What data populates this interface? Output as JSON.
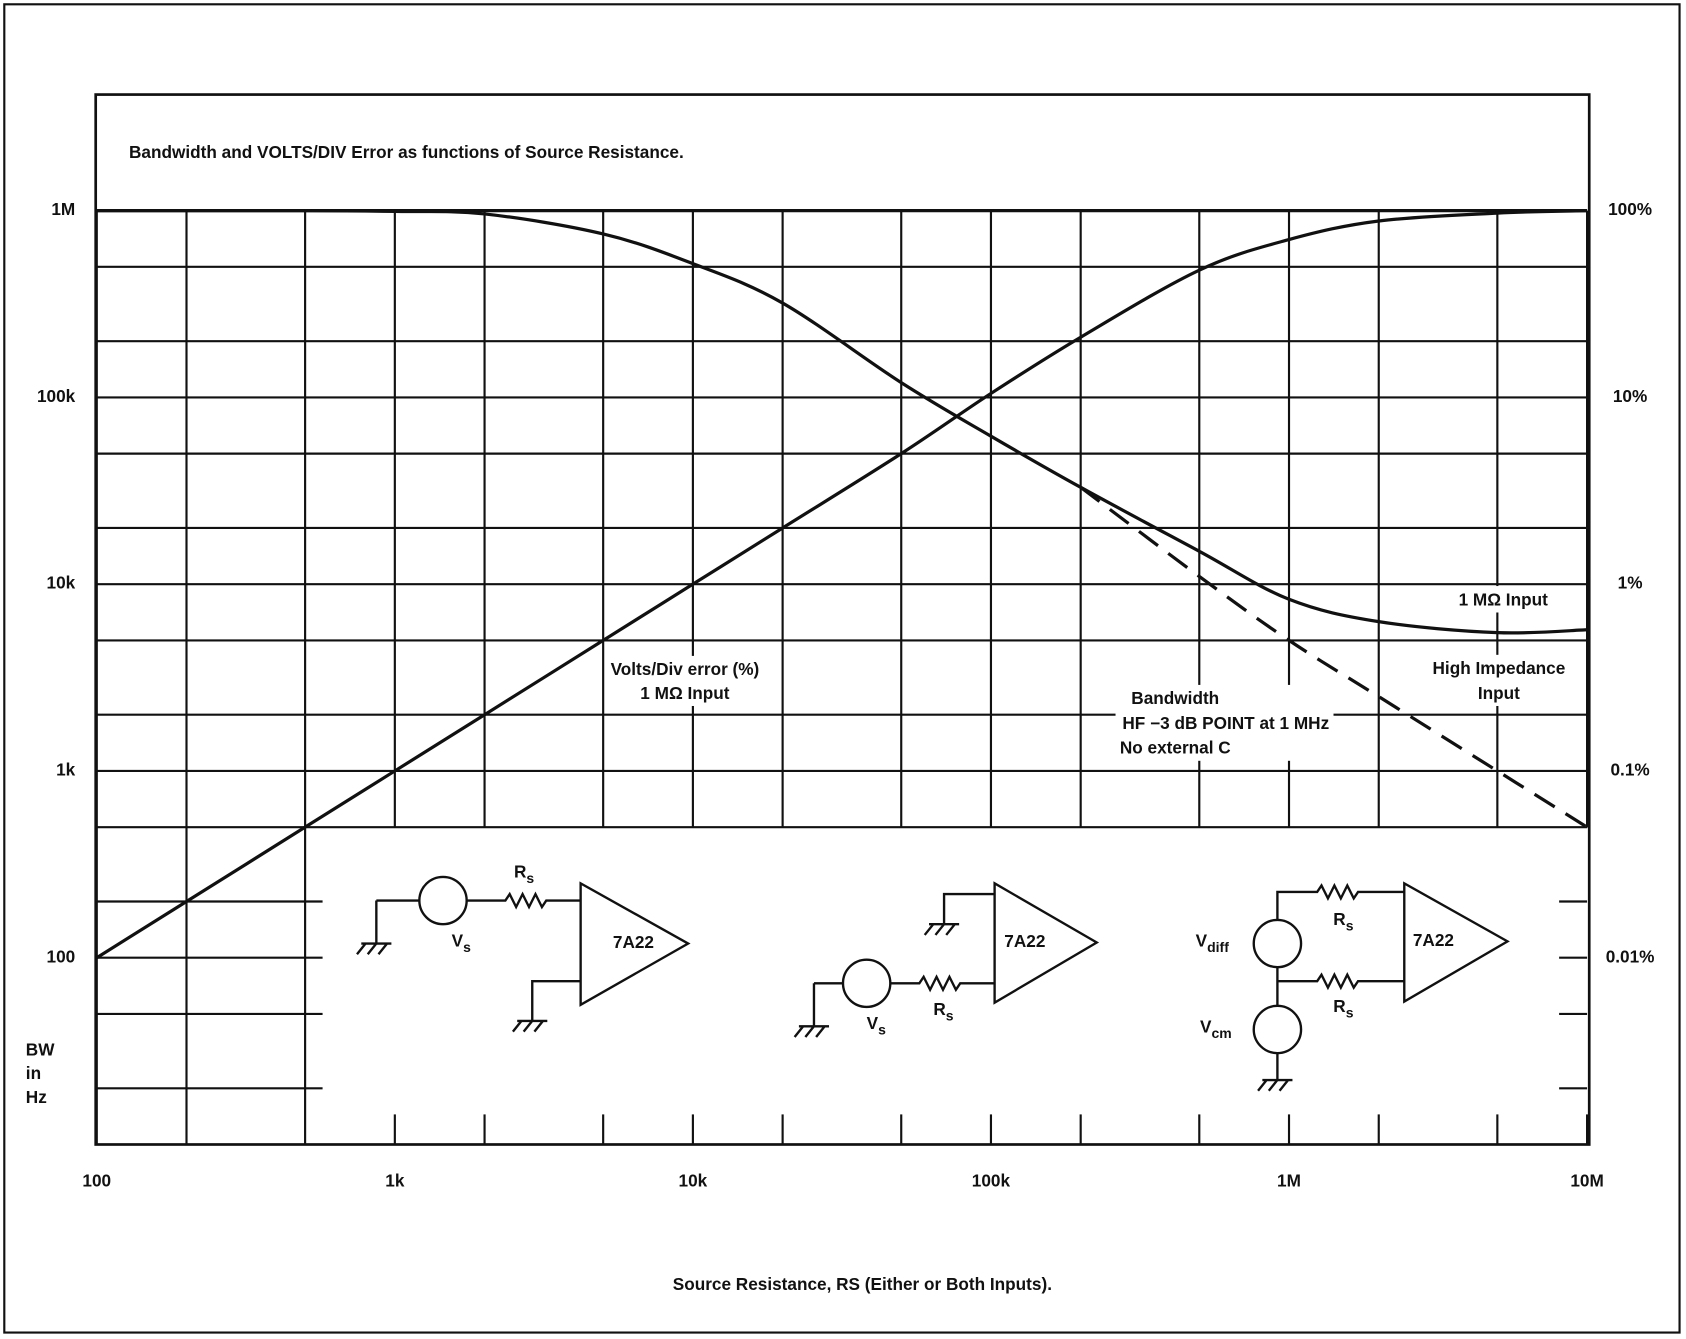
{
  "chart_data": {
    "type": "line",
    "title": "Bandwidth and VOLTS/DIV Error as functions of Source Resistance.",
    "xlabel": "Source Resistance, RS (Either or Both Inputs).",
    "ylabel": [
      "BW",
      "in",
      "Hz"
    ],
    "xlog": true,
    "ylog": true,
    "y2log": true,
    "grid": true,
    "x": [
      100,
      200,
      500,
      1000,
      2000,
      5000,
      10000,
      20000,
      50000,
      100000,
      200000,
      500000,
      1000000,
      2000000,
      5000000,
      10000000
    ],
    "xlim": [
      100,
      10000000
    ],
    "xticks": [
      100,
      {
        "value": 1000,
        "label": "1k"
      },
      {
        "value": 10000,
        "label": "10k"
      },
      {
        "value": 100000,
        "label": "100k"
      },
      {
        "value": 1000000,
        "label": "1M"
      },
      {
        "value": 10000000,
        "label": "10M"
      }
    ],
    "xminorticks": [
      200,
      500,
      2000,
      5000,
      20000,
      50000,
      200000,
      500000,
      2000000,
      5000000
    ],
    "ylim": [
      10,
      1000000
    ],
    "yticks": [
      100,
      {
        "value": 1000,
        "label": "1k"
      },
      {
        "value": 10000,
        "label": "10k"
      },
      {
        "value": 100000,
        "label": "100k"
      },
      {
        "value": 1000000,
        "label": "1M"
      }
    ],
    "yminorticks": [
      20,
      50,
      200,
      500,
      2000,
      5000,
      20000,
      50000,
      200000,
      500000
    ],
    "y2lim": [
      0.001,
      100
    ],
    "y2ticks": [
      {
        "value": 0.01,
        "label": "0.01%"
      },
      {
        "value": 0.1,
        "label": "0.1%"
      },
      {
        "value": 1,
        "label": "1%"
      },
      {
        "value": 10,
        "label": "10%"
      },
      {
        "value": 100,
        "label": "100%"
      }
    ],
    "y2minorticks": [
      0.002,
      0.005,
      0.02
    ],
    "series": [
      {
        "color": "#111111",
        "style": "solid",
        "axis": "y2",
        "values": [
          0.01,
          0.02,
          0.05,
          0.1,
          0.2,
          0.5,
          1,
          2,
          5,
          10.5,
          21,
          48,
          70,
          88,
          97,
          100
        ]
      },
      {
        "color": "#111111",
        "style": "solid",
        "values": [
          1000000,
          1000000,
          1000000,
          990000,
          960000,
          750000,
          520000,
          320000,
          120000,
          62000,
          33000,
          15000,
          8300,
          6300,
          5500,
          5700
        ]
      },
      {
        "color": "#111111",
        "style": "dashed",
        "values": [
          null,
          null,
          null,
          null,
          null,
          null,
          null,
          null,
          null,
          null,
          33000,
          11000,
          5000,
          2500,
          1000,
          500
        ]
      }
    ],
    "annotations": [
      {
        "lines": [
          "Volts/Div error (%)",
          "1 MΩ Input"
        ]
      },
      {
        "lines": [
          "Bandwidth",
          "HF −3 dB POINT at 1 MHz",
          "No external C"
        ]
      },
      {
        "lines": [
          "1 MΩ Input"
        ]
      },
      {
        "lines": [
          "High Impedance",
          "Input"
        ]
      }
    ]
  },
  "circuits": [
    {
      "amplifier": "7A22",
      "labels": [
        [
          "R",
          "s"
        ],
        [
          "V",
          "s"
        ]
      ]
    },
    {
      "amplifier": "7A22",
      "labels": [
        [
          "V",
          "s"
        ],
        [
          "R",
          "s"
        ]
      ]
    },
    {
      "amplifier": "7A22",
      "labels": [
        [
          "V",
          "diff"
        ],
        [
          "R",
          "s"
        ],
        [
          "R",
          "s"
        ],
        [
          "V",
          "cm"
        ]
      ]
    }
  ]
}
